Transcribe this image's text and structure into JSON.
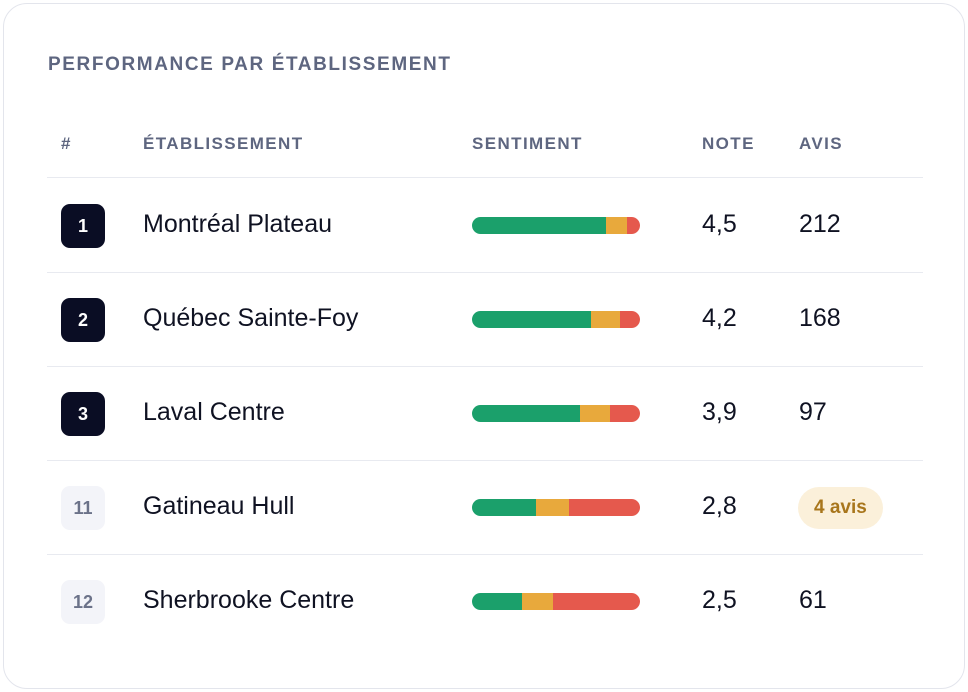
{
  "card": {
    "title": "PERFORMANCE PAR ÉTABLISSEMENT"
  },
  "table": {
    "headers": {
      "rank": "#",
      "name": "ÉTABLISSEMENT",
      "sentiment": "SENTIMENT",
      "note": "NOTE",
      "avis": "AVIS"
    },
    "rows": [
      {
        "rank": "1",
        "rank_style": "top",
        "name": "Montréal Plateau",
        "sentiment": {
          "positive": 0.8,
          "neutral": 0.12,
          "negative": 0.08
        },
        "note": "4,5",
        "avis": "212",
        "avis_badge": false
      },
      {
        "rank": "2",
        "rank_style": "top",
        "name": "Québec Sainte-Foy",
        "sentiment": {
          "positive": 0.71,
          "neutral": 0.17,
          "negative": 0.12
        },
        "note": "4,2",
        "avis": "168",
        "avis_badge": false
      },
      {
        "rank": "3",
        "rank_style": "top",
        "name": "Laval Centre",
        "sentiment": {
          "positive": 0.64,
          "neutral": 0.18,
          "negative": 0.18
        },
        "note": "3,9",
        "avis": "97",
        "avis_badge": false
      },
      {
        "rank": "11",
        "rank_style": "low",
        "name": "Gatineau Hull",
        "sentiment": {
          "positive": 0.38,
          "neutral": 0.2,
          "negative": 0.42
        },
        "note": "2,8",
        "avis": "4 avis",
        "avis_badge": true
      },
      {
        "rank": "12",
        "rank_style": "low",
        "name": "Sherbrooke Centre",
        "sentiment": {
          "positive": 0.3,
          "neutral": 0.18,
          "negative": 0.52
        },
        "note": "2,5",
        "avis": "61",
        "avis_badge": false
      }
    ]
  },
  "colors": {
    "positive": "#1ba06b",
    "neutral": "#e8a93c",
    "negative": "#e5594d",
    "rank_top_bg": "#0a0d24",
    "badge_bg": "#fbf0da"
  }
}
